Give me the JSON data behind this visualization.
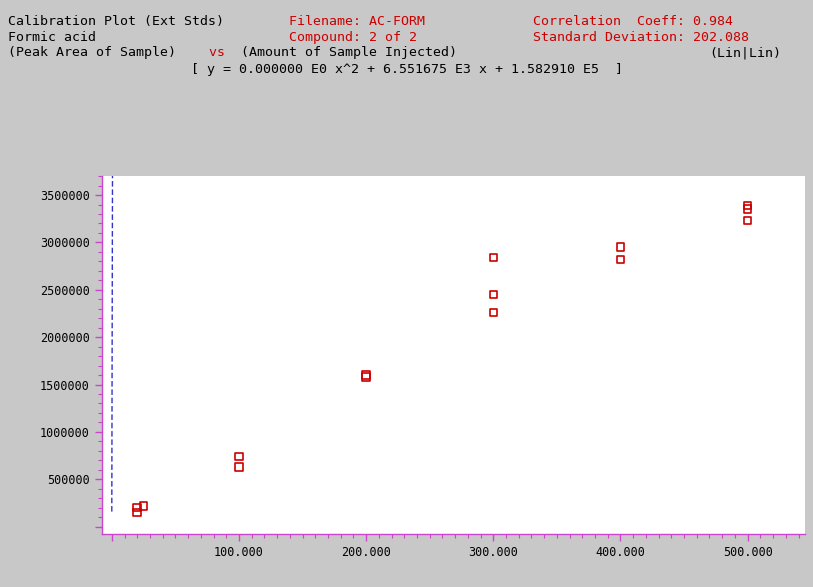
{
  "title_line1": "Calibration Plot (Ext Stds)",
  "filename_label": "Filename: AC-FORM",
  "compound_label": "Compound: 2 of 2",
  "corr_label": "Correlation  Coeff: 0.984",
  "stddev_label": "Standard Deviation: 202.088",
  "compound_name": "Formic acid",
  "axis_label_x": "(Amount of Sample Injected)",
  "axis_label_y": "(Peak Area of Sample)",
  "vs_word": "vs",
  "lin_lin": "(Lin|Lin)",
  "equation": "[ y = 0.000000 E0 x^2 + 6.551675 E3 x + 1.582910 E5  ]",
  "background_color": "#c8c8c8",
  "plot_bg_color": "#ffffff",
  "line_color": "#3333cc",
  "point_color": "#cc0000",
  "text_color_black": "#000000",
  "text_color_red": "#cc0000",
  "scatter_x": [
    20000,
    20000,
    25000,
    100000,
    100000,
    200000,
    200000,
    300000,
    300000,
    300000,
    400000,
    400000,
    500000,
    500000,
    500000
  ],
  "scatter_y": [
    150000,
    200000,
    220000,
    740000,
    630000,
    1580000,
    1600000,
    2260000,
    2450000,
    2840000,
    2950000,
    2820000,
    3390000,
    3350000,
    3230000
  ],
  "fit_slope": 6551.675,
  "fit_intercept": 158291.0,
  "fit_x_start": 0,
  "fit_x_end": 540000,
  "xlim_left": -8000,
  "xlim_right": 545000,
  "ylim_bottom": -80000,
  "ylim_top": 3700000,
  "xtick_positions": [
    0,
    100000,
    200000,
    300000,
    400000,
    500000
  ],
  "xtick_labels": [
    "",
    "100.000",
    "200.000",
    "300.000",
    "400.000",
    "500.000"
  ],
  "ytick_positions": [
    0,
    500000,
    1000000,
    1500000,
    2000000,
    2500000,
    3000000,
    3500000
  ],
  "ytick_labels": [
    "",
    "500000",
    "1000000",
    "1500000",
    "2000000",
    "2500000",
    "3000000",
    "3500000"
  ],
  "tick_color": "#cc44cc",
  "spine_color": "#cc44cc"
}
